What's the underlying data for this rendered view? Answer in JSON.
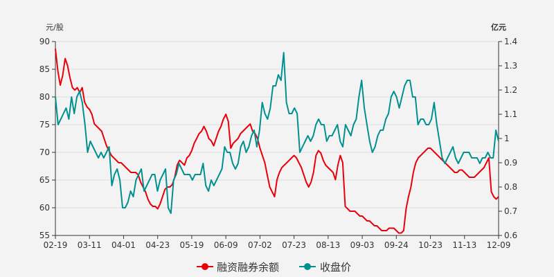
{
  "chart_data": {
    "type": "line",
    "left_unit": "元/股",
    "right_unit": "亿元",
    "x_tick_labels": [
      "02-19",
      "03-11",
      "04-01",
      "04-23",
      "05-19",
      "06-09",
      "07-02",
      "07-23",
      "08-13",
      "09-03",
      "09-24",
      "10-23",
      "11-13",
      "12-09"
    ],
    "left_axis": {
      "min": 55,
      "max": 90,
      "ticks": [
        55,
        60,
        65,
        70,
        75,
        80,
        85,
        90
      ]
    },
    "right_axis": {
      "min": 0.6,
      "max": 1.4,
      "ticks": [
        "0.6",
        "0.7",
        "0.8",
        "0.9",
        "1",
        "1.1",
        "1.2",
        "1.3",
        "1.4"
      ]
    },
    "legend_position": "bottom-center",
    "series": [
      {
        "name": "融资融券余额",
        "color": "#e8000b",
        "axis": "right",
        "values": [
          1.37,
          1.28,
          1.22,
          1.26,
          1.33,
          1.3,
          1.25,
          1.21,
          1.2,
          1.21,
          1.19,
          1.21,
          1.15,
          1.13,
          1.12,
          1.1,
          1.06,
          1.05,
          1.04,
          1.03,
          1.0,
          0.97,
          0.95,
          0.93,
          0.92,
          0.91,
          0.9,
          0.9,
          0.89,
          0.88,
          0.87,
          0.86,
          0.86,
          0.86,
          0.85,
          0.82,
          0.8,
          0.78,
          0.75,
          0.73,
          0.72,
          0.72,
          0.71,
          0.73,
          0.76,
          0.79,
          0.8,
          0.8,
          0.81,
          0.84,
          0.89,
          0.91,
          0.9,
          0.89,
          0.92,
          0.93,
          0.95,
          0.98,
          1.0,
          1.02,
          1.03,
          1.05,
          1.03,
          1.0,
          0.99,
          0.97,
          1.0,
          1.03,
          1.05,
          1.08,
          1.1,
          1.07,
          0.96,
          0.98,
          0.99,
          1.0,
          1.02,
          1.03,
          1.04,
          1.05,
          1.06,
          1.03,
          1.02,
          1.0,
          0.96,
          0.93,
          0.9,
          0.85,
          0.8,
          0.78,
          0.76,
          0.83,
          0.86,
          0.88,
          0.89,
          0.9,
          0.91,
          0.92,
          0.93,
          0.92,
          0.9,
          0.88,
          0.85,
          0.82,
          0.8,
          0.82,
          0.86,
          0.93,
          0.95,
          0.94,
          0.91,
          0.89,
          0.88,
          0.87,
          0.86,
          0.83,
          0.89,
          0.93,
          0.9,
          0.72,
          0.71,
          0.7,
          0.7,
          0.7,
          0.69,
          0.68,
          0.68,
          0.67,
          0.66,
          0.66,
          0.65,
          0.64,
          0.64,
          0.63,
          0.62,
          0.62,
          0.62,
          0.63,
          0.63,
          0.63,
          0.62,
          0.61,
          0.61,
          0.62,
          0.71,
          0.76,
          0.8,
          0.86,
          0.9,
          0.92,
          0.93,
          0.94,
          0.95,
          0.96,
          0.96,
          0.95,
          0.94,
          0.93,
          0.92,
          0.91,
          0.9,
          0.89,
          0.88,
          0.87,
          0.86,
          0.86,
          0.87,
          0.87,
          0.86,
          0.85,
          0.84,
          0.84,
          0.84,
          0.85,
          0.86,
          0.87,
          0.88,
          0.9,
          0.92,
          0.78,
          0.76,
          0.75,
          0.76
        ]
      },
      {
        "name": "收盘价",
        "color": "#009090",
        "axis": "left",
        "values": [
          80,
          75,
          76,
          77,
          78,
          76,
          80,
          77,
          80,
          81,
          79,
          75,
          70,
          72,
          71,
          70,
          69,
          70,
          69,
          70,
          71,
          64,
          66,
          67,
          65,
          60,
          60,
          61,
          63,
          62,
          65,
          66,
          67,
          63,
          64,
          65,
          66,
          66,
          63,
          65,
          66,
          67,
          60,
          59,
          65,
          66,
          68,
          67,
          66,
          66,
          66,
          65,
          66,
          66,
          66,
          68,
          64,
          63,
          65,
          64,
          65,
          66,
          67,
          71,
          70,
          70,
          68,
          67,
          68,
          71,
          72,
          70,
          71,
          73,
          74,
          71,
          74,
          79,
          77,
          76,
          78,
          82,
          82,
          84,
          83,
          88,
          79,
          77,
          77,
          78,
          77,
          70,
          71,
          72,
          73,
          72,
          73,
          75,
          76,
          75,
          75,
          72,
          73,
          73,
          74,
          75,
          72,
          71,
          75,
          74,
          73,
          75,
          76,
          80,
          83,
          78,
          75,
          72,
          70,
          71,
          73,
          74,
          74,
          76,
          77,
          80,
          81,
          80,
          78,
          80,
          82,
          83,
          83,
          80,
          80,
          75,
          76,
          76,
          75,
          75,
          76,
          79,
          75,
          72,
          69,
          68,
          69,
          70,
          71,
          69,
          68,
          69,
          70,
          70,
          70,
          69,
          69,
          69,
          68,
          69,
          69,
          70,
          69,
          69,
          74,
          72
        ]
      }
    ]
  }
}
